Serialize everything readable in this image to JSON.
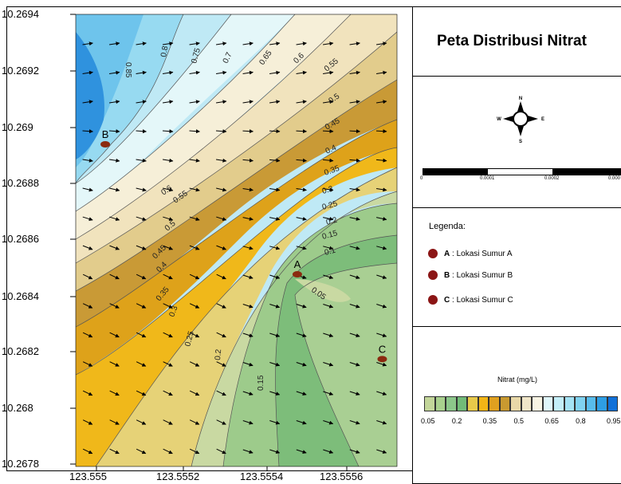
{
  "map": {
    "title": "Peta Distribusi Nitrat",
    "y_ticks": [
      "10.2694",
      "10.2692",
      "10.269",
      "10.2688",
      "10.2686",
      "10.2684",
      "10.2682",
      "10.268",
      "10.2678"
    ],
    "x_ticks": [
      "123.555",
      "123.5552",
      "123.5554",
      "123.5556"
    ],
    "contour_labels": [
      "0.85",
      "0.8",
      "0.75",
      "0.7",
      "0.65",
      "0.6",
      "0.55",
      "0.5",
      "0.45",
      "0.4",
      "0.35",
      "0.3",
      "0.25",
      "0.2",
      "0.15",
      "0.1",
      "0.05",
      "0.6",
      "0.55",
      "0.5",
      "0.45",
      "0.4",
      "0.35",
      "0.3",
      "0.25",
      "0.2",
      "0.15"
    ],
    "wells": [
      {
        "label": "A",
        "x": 123.55548,
        "y": 10.26848
      },
      {
        "label": "B",
        "x": 123.55496,
        "y": 10.26894
      },
      {
        "label": "C",
        "x": 123.55571,
        "y": 10.26818
      }
    ]
  },
  "compass": {
    "n": "N",
    "s": "S",
    "e": "E",
    "w": "W"
  },
  "scale_bar": {
    "labels": [
      "0",
      "0.0001",
      "0.0002",
      "0.000"
    ]
  },
  "legend": {
    "title": "Legenda:",
    "items": [
      {
        "key": "A",
        "text": ": Lokasi Sumur A"
      },
      {
        "key": "B",
        "text": ": Lokasi Sumur B"
      },
      {
        "key": "C",
        "text": ": Lokasi Sumur C"
      }
    ]
  },
  "colorbar": {
    "title": "Nitrat (mg/L)",
    "labels": [
      "0.05",
      "0.2",
      "0.35",
      "0.5",
      "0.65",
      "0.8",
      "0.95"
    ],
    "colors": [
      "#c3d69a",
      "#a9d08e",
      "#8cc68a",
      "#72bb78",
      "#e8c94a",
      "#f2b516",
      "#e0a020",
      "#c99a30",
      "#e8d8a8",
      "#f0e6c8",
      "#f8f4e4",
      "#e0f6fa",
      "#c4eef8",
      "#a4e2f4",
      "#80d2f0",
      "#58bcec",
      "#2e9ee4",
      "#1070d8"
    ],
    "level_colors": [
      "#c9d9a2",
      "#9dcb8b",
      "#7dbd7a",
      "#e6d277",
      "#f0b81a",
      "#dea21a",
      "#c79a36",
      "#ebdcae",
      "#f6efd8",
      "#e4f7f9",
      "#bdeaf5",
      "#97daf1",
      "#6ec4ec",
      "#3e9fe1"
    ]
  }
}
